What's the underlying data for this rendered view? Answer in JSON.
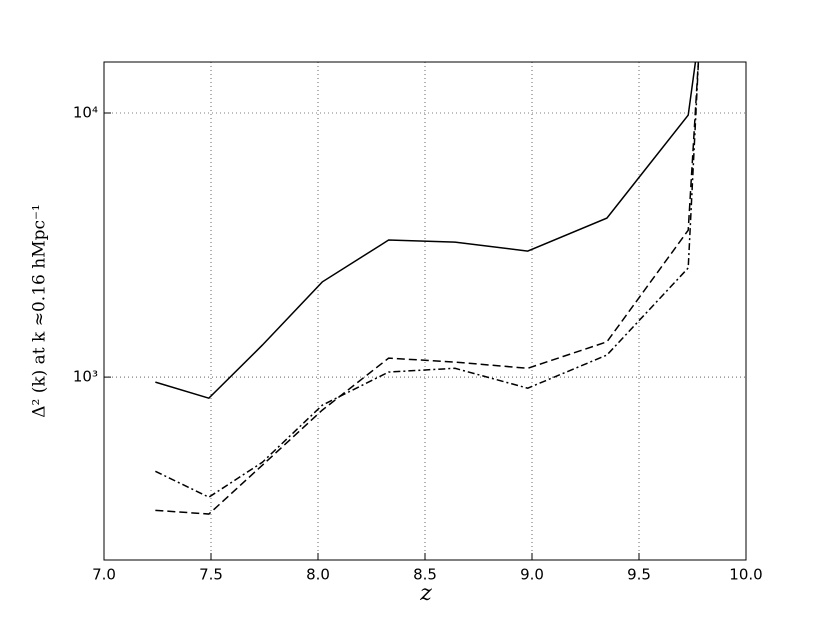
{
  "chart_data": {
    "type": "line",
    "x_label": "z",
    "y_label": "Δ² (k) at k ≈0.16 hMpc⁻¹",
    "log_y": true,
    "grid": true,
    "xlim": [
      7.0,
      10.0
    ],
    "xticks": [
      {
        "value": 7.0,
        "label": "7.0"
      },
      {
        "value": 7.5,
        "label": "7.5"
      },
      {
        "value": 8.0,
        "label": "8.0"
      },
      {
        "value": 8.5,
        "label": "8.5"
      },
      {
        "value": 9.0,
        "label": "9.0"
      },
      {
        "value": 9.5,
        "label": "9.5"
      },
      {
        "value": 10.0,
        "label": "10.0"
      }
    ],
    "ylim": [
      203,
      15600
    ],
    "yticks": [
      {
        "value": 1000,
        "label": "10³"
      },
      {
        "value": 10000,
        "label": "10⁴"
      }
    ],
    "series": [
      {
        "color": "#000000",
        "linestyle": "solid",
        "x": [
          7.24,
          7.49,
          7.74,
          8.02,
          8.33,
          8.64,
          8.98,
          9.35,
          9.73,
          9.77
        ],
        "values": [
          957,
          832,
          1322,
          2293,
          3304,
          3245,
          3000,
          4000,
          9820,
          17000
        ]
      },
      {
        "color": "#000000",
        "linestyle": "dashed",
        "x": [
          7.24,
          7.49,
          7.74,
          8.02,
          8.33,
          8.64,
          8.98,
          9.35,
          9.73,
          9.78
        ],
        "values": [
          313,
          303,
          464,
          750,
          1180,
          1140,
          1080,
          1360,
          3600,
          17000
        ]
      },
      {
        "color": "#000000",
        "linestyle": "dashdot",
        "x": [
          7.24,
          7.49,
          7.74,
          8.02,
          8.33,
          8.64,
          8.98,
          9.35,
          9.73,
          9.78
        ],
        "values": [
          440,
          351,
          476,
          783,
          1045,
          1080,
          908,
          1212,
          2590,
          17000
        ]
      }
    ]
  }
}
